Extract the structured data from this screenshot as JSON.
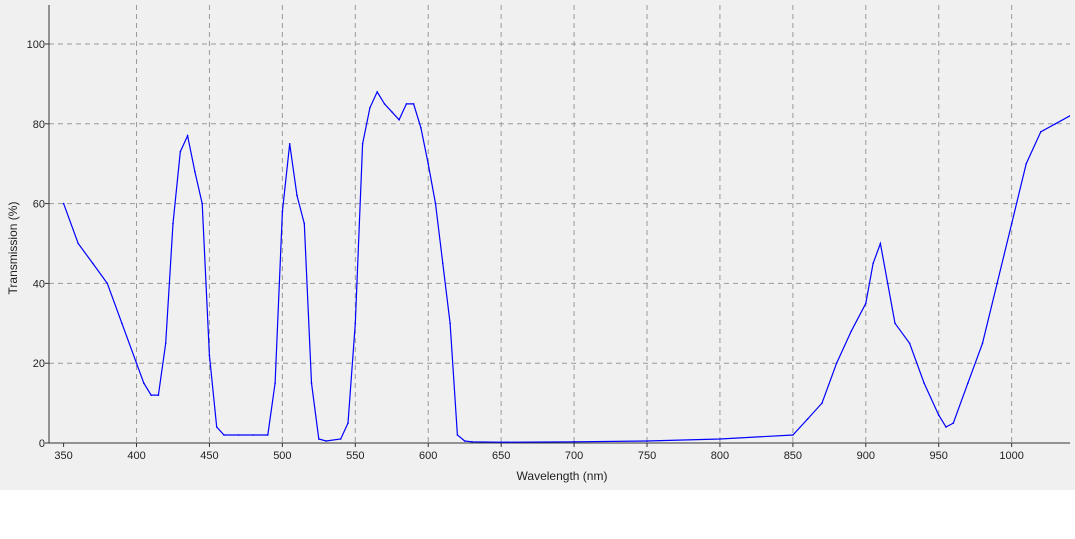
{
  "chart_data": {
    "type": "line",
    "title": "",
    "xlabel": "Wavelength (nm)",
    "ylabel": "Transmission (%)",
    "xlim": [
      340,
      1040
    ],
    "ylim": [
      0,
      110
    ],
    "x_ticks": [
      350,
      400,
      450,
      500,
      550,
      600,
      650,
      700,
      750,
      800,
      850,
      900,
      950,
      1000
    ],
    "y_ticks": [
      0,
      20,
      40,
      60,
      80,
      100
    ],
    "grid": true,
    "grid_style": "dashed",
    "line_color": "#0000ff",
    "background_color": "#f0f0f0",
    "series": [
      {
        "x": [
          350,
          360,
          370,
          380,
          390,
          400,
          405,
          410,
          415,
          420,
          425,
          430,
          435,
          440,
          445,
          450,
          455,
          460,
          470,
          480,
          490,
          495,
          500,
          505,
          510,
          515,
          520,
          525,
          530,
          540,
          545,
          550,
          555,
          560,
          565,
          570,
          575,
          580,
          585,
          590,
          595,
          600,
          605,
          610,
          615,
          620,
          625,
          630,
          650,
          700,
          750,
          800,
          850,
          860,
          870,
          880,
          890,
          900,
          905,
          910,
          915,
          920,
          930,
          940,
          950,
          955,
          960,
          970,
          980,
          990,
          1000,
          1010,
          1020,
          1030,
          1040
        ],
        "y": [
          60,
          50,
          45,
          40,
          30,
          20,
          15,
          12,
          12,
          25,
          55,
          73,
          77,
          68,
          60,
          22,
          4,
          2,
          2,
          2,
          2,
          15,
          58,
          75,
          62,
          55,
          15,
          1,
          0.5,
          1,
          5,
          30,
          75,
          84,
          88,
          85,
          83,
          81,
          85,
          85,
          79,
          70,
          60,
          45,
          30,
          2,
          0.5,
          0.3,
          0.2,
          0.3,
          0.5,
          1,
          2,
          6,
          10,
          20,
          28,
          35,
          45,
          50,
          40,
          30,
          25,
          15,
          7,
          4,
          5,
          15,
          25,
          40,
          55,
          70,
          78,
          80,
          82
        ]
      }
    ]
  }
}
